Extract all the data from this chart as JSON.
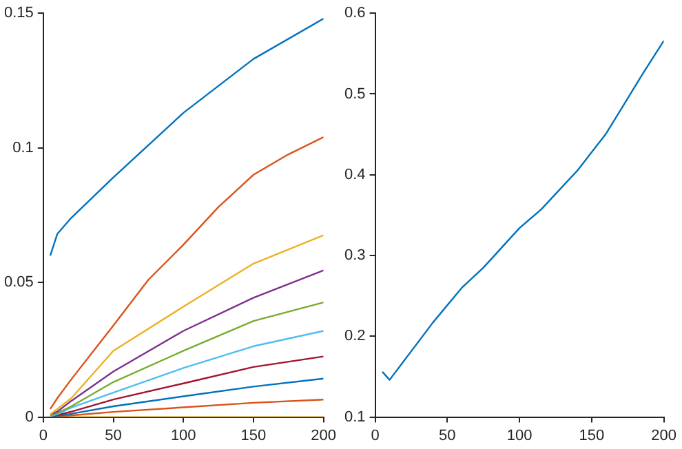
{
  "chart_data": [
    {
      "type": "line",
      "x": [
        5,
        10,
        20,
        50,
        100,
        150,
        200
      ],
      "xlim": [
        0,
        200
      ],
      "xticks": [
        0,
        50,
        100,
        150,
        200
      ],
      "ylim": [
        0,
        0.15
      ],
      "yticks": [
        0,
        0.05,
        0.1,
        0.15
      ],
      "grid": false,
      "legend": false,
      "series": [
        {
          "color": "#0072bd",
          "values": [
            0.06,
            0.068,
            0.074,
            0.089,
            0.113,
            0.133,
            0.148
          ]
        },
        {
          "color": "#d95319",
          "x": [
            5,
            10,
            20,
            50,
            75,
            100,
            125,
            150,
            175,
            200
          ],
          "values": [
            0.003,
            0.007,
            0.014,
            0.034,
            0.051,
            0.064,
            0.078,
            0.09,
            0.0976,
            0.104
          ]
        },
        {
          "color": "#edb120",
          "values": [
            0.001,
            0.003,
            0.007,
            0.0246,
            0.041,
            0.057,
            0.0675
          ]
        },
        {
          "color": "#7e2f8e",
          "values": [
            0.001,
            0.002,
            0.006,
            0.0169,
            0.032,
            0.0443,
            0.0545
          ]
        },
        {
          "color": "#77ac30",
          "values": [
            0.0005,
            0.0015,
            0.004,
            0.013,
            0.0246,
            0.0357,
            0.0426
          ]
        },
        {
          "color": "#4dbeee",
          "values": [
            0.0003,
            0.001,
            0.0035,
            0.0091,
            0.0182,
            0.0263,
            0.032
          ]
        },
        {
          "color": "#a2142f",
          "values": [
            0.0002,
            0.0007,
            0.002,
            0.0065,
            0.0125,
            0.0186,
            0.0225
          ]
        },
        {
          "color": "#0072bd",
          "values": [
            0.0001,
            0.0004,
            0.0012,
            0.004,
            0.0077,
            0.0113,
            0.0143
          ]
        },
        {
          "color": "#d95319",
          "values": [
            0,
            0.0002,
            0.0006,
            0.0019,
            0.0036,
            0.0053,
            0.0065
          ]
        },
        {
          "color": "#edb120",
          "values": [
            0,
            0,
            0,
            0,
            0,
            0,
            0
          ]
        }
      ]
    },
    {
      "type": "line",
      "x": [
        5,
        10,
        40,
        60,
        75,
        100,
        115,
        140,
        160,
        170,
        185,
        200
      ],
      "xlim": [
        0,
        200
      ],
      "xticks": [
        0,
        50,
        100,
        150,
        200
      ],
      "ylim": [
        0.1,
        0.6
      ],
      "yticks": [
        0.1,
        0.2,
        0.3,
        0.4,
        0.5,
        0.6
      ],
      "grid": false,
      "legend": false,
      "series": [
        {
          "color": "#0072bd",
          "values": [
            0.156,
            0.146,
            0.217,
            0.26,
            0.285,
            0.334,
            0.357,
            0.405,
            0.451,
            0.48,
            0.524,
            0.566
          ]
        }
      ]
    }
  ]
}
